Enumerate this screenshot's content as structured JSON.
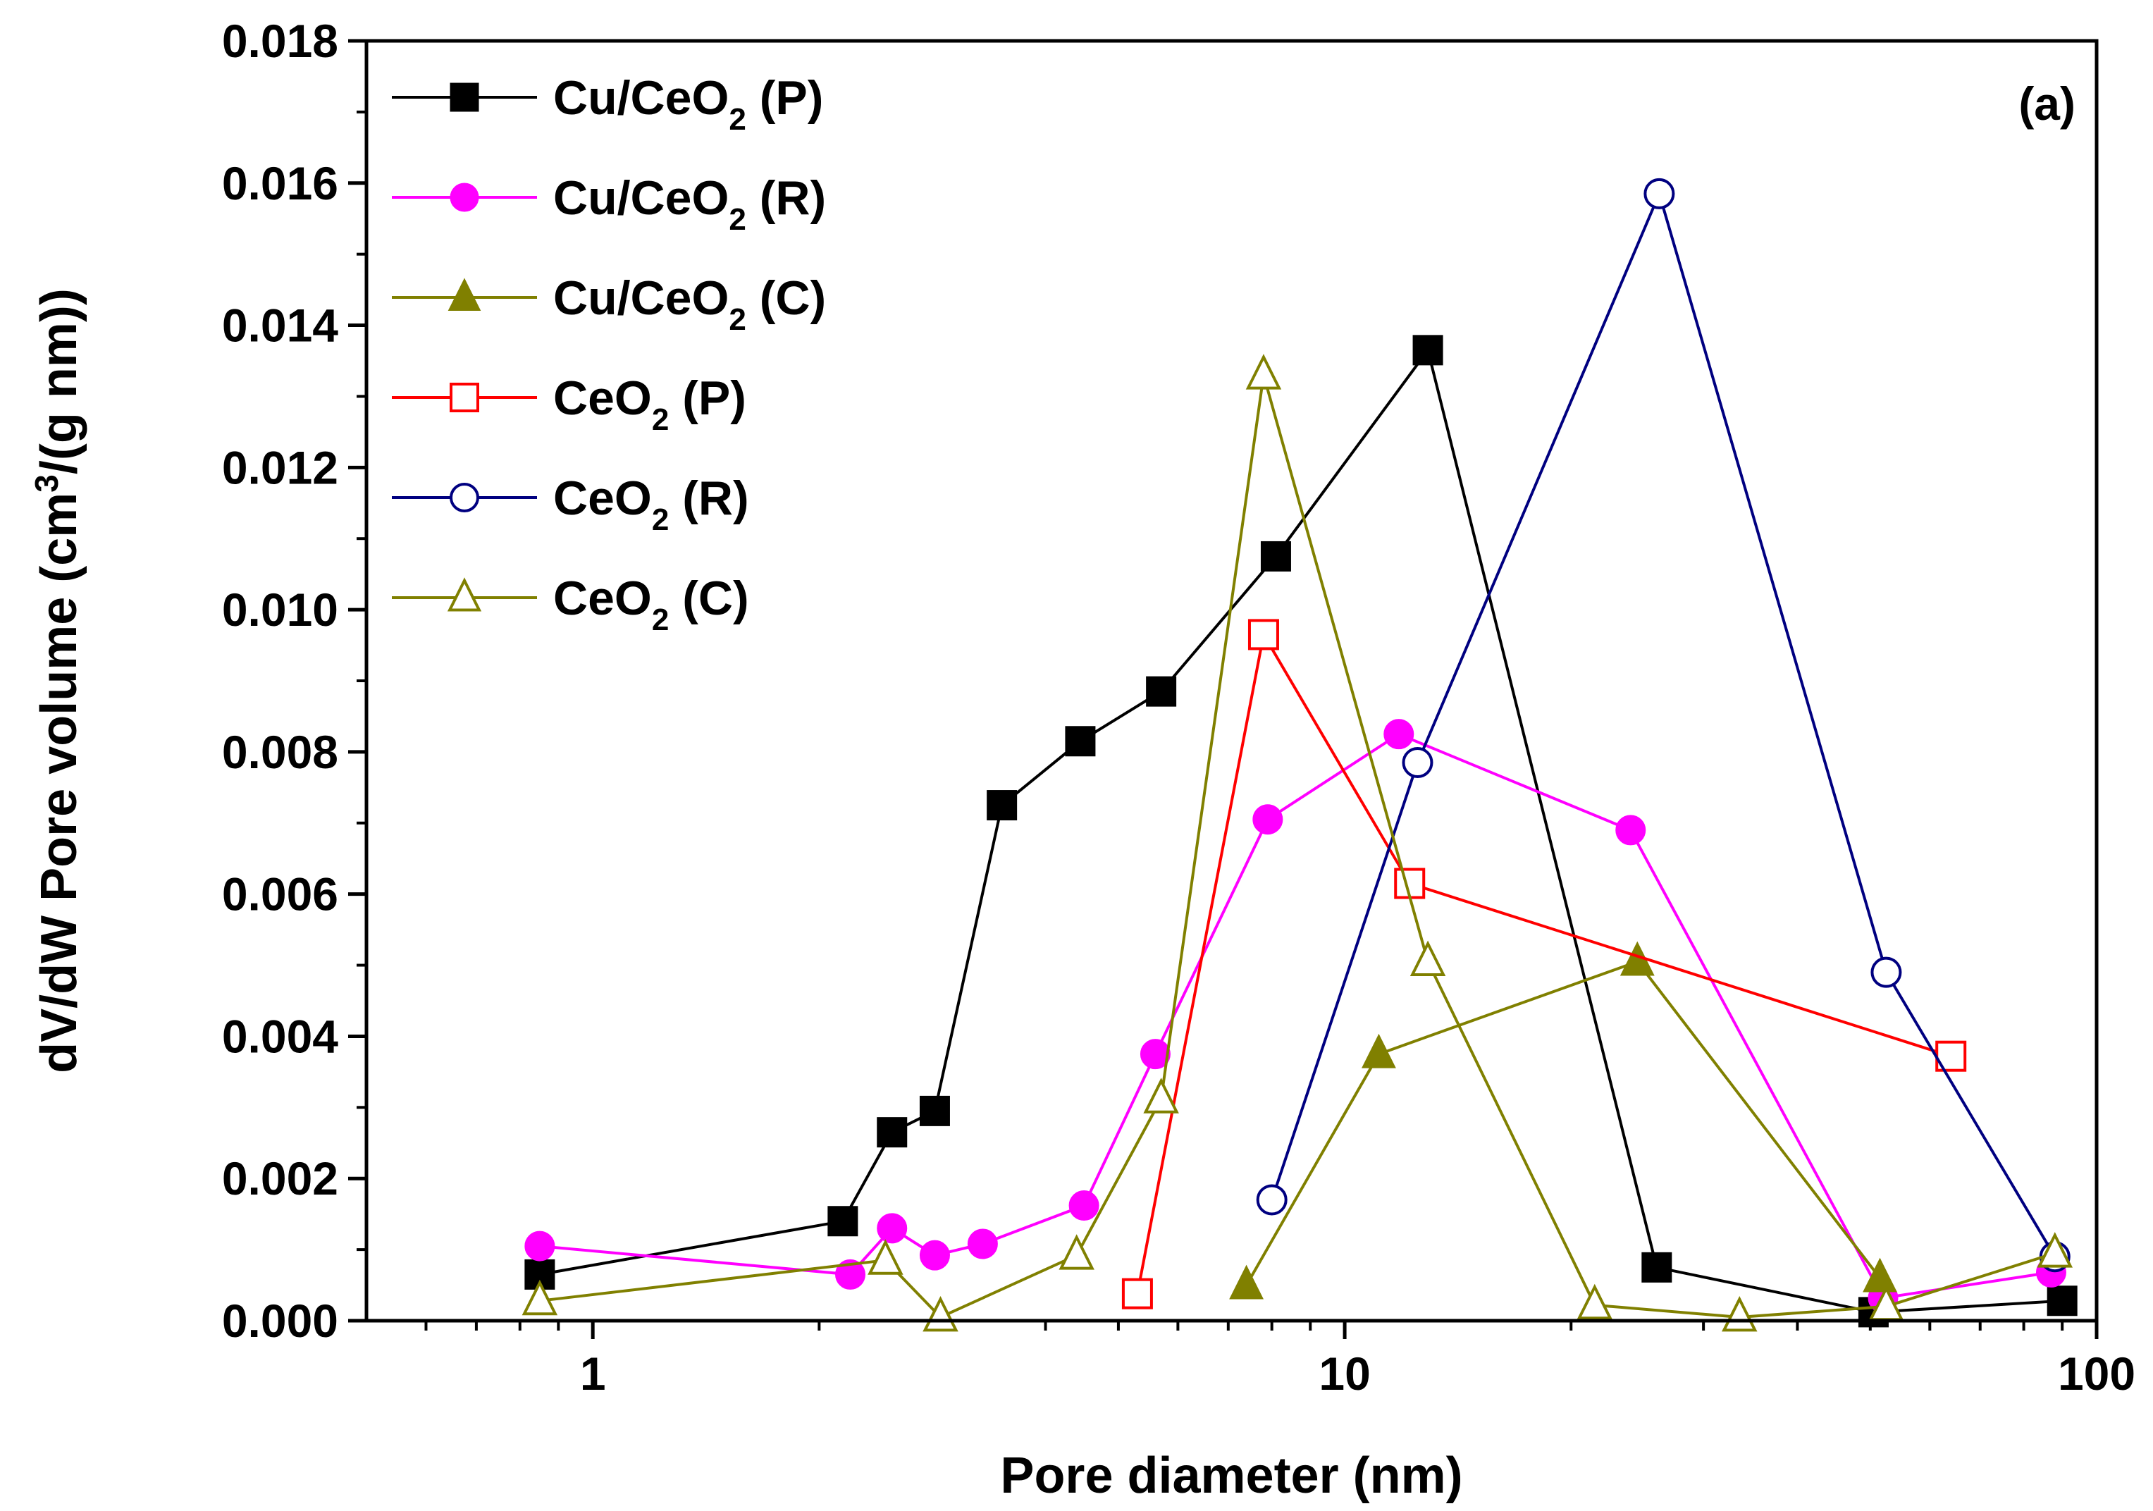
{
  "chart_data": {
    "type": "line",
    "title": "",
    "panel_label": "(a)",
    "xlabel": "Pore diameter (nm)",
    "ylabel": {
      "prefix": "dV/dW Pore volume (cm",
      "sup": "3",
      "suffix": "/(g nm))"
    },
    "xscale": "log",
    "xlim": [
      0.5,
      100
    ],
    "ylim": [
      0,
      0.018
    ],
    "x_ticks": [
      1,
      10,
      100
    ],
    "x_tick_labels": [
      "1",
      "10",
      "100"
    ],
    "y_ticks": [
      0,
      0.002,
      0.004,
      0.006,
      0.008,
      0.01,
      0.012,
      0.014,
      0.016,
      0.018
    ],
    "y_tick_labels": [
      "0.000",
      "0.002",
      "0.004",
      "0.006",
      "0.008",
      "0.010",
      "0.012",
      "0.014",
      "0.016",
      "0.018"
    ],
    "legend_position": "top-left",
    "series": [
      {
        "name": "Cu/CeO2 (P)",
        "label_main": "Cu/CeO",
        "label_sub": "2",
        "label_tail": " (P)",
        "color": "#000000",
        "marker": "square",
        "filled": true,
        "x": [
          0.85,
          2.15,
          2.5,
          2.85,
          3.5,
          4.45,
          5.7,
          8.1,
          12.9,
          26,
          50.5,
          90
        ],
        "y": [
          0.00065,
          0.0014,
          0.00265,
          0.00295,
          0.00725,
          0.00815,
          0.00885,
          0.01075,
          0.01365,
          0.00075,
          0.00012,
          0.00028
        ]
      },
      {
        "name": "Cu/CeO2 (R)",
        "label_main": "Cu/CeO",
        "label_sub": "2",
        "label_tail": " (R)",
        "color": "#ff00ff",
        "marker": "circle",
        "filled": true,
        "x": [
          0.85,
          2.2,
          2.5,
          2.85,
          3.3,
          4.5,
          5.6,
          7.9,
          11.8,
          24,
          52,
          87
        ],
        "y": [
          0.00105,
          0.00065,
          0.0013,
          0.00092,
          0.00108,
          0.00162,
          0.00375,
          0.00705,
          0.00825,
          0.0069,
          0.00032,
          0.00068
        ]
      },
      {
        "name": "Cu/CeO2 (C)",
        "label_main": "Cu/CeO",
        "label_sub": "2",
        "label_tail": " (C)",
        "color": "#808000",
        "marker": "triangle",
        "filled": true,
        "x": [
          7.4,
          11.1,
          24.5,
          51.5
        ],
        "y": [
          0.0005,
          0.00375,
          0.00505,
          0.0006
        ]
      },
      {
        "name": "CeO2 (P)",
        "label_main": "CeO",
        "label_sub": "2",
        "label_tail": " (P)",
        "color": "#ff0000",
        "marker": "square",
        "filled": false,
        "x": [
          5.3,
          7.8,
          12.2,
          64
        ],
        "y": [
          0.00038,
          0.00965,
          0.00615,
          0.00372
        ]
      },
      {
        "name": "CeO2 (R)",
        "label_main": "CeO",
        "label_sub": "2",
        "label_tail": " (R)",
        "color": "#000080",
        "marker": "circle",
        "filled": false,
        "x": [
          8.0,
          12.5,
          26.2,
          52.5,
          88
        ],
        "y": [
          0.0017,
          0.00785,
          0.01585,
          0.0049,
          0.0009
        ]
      },
      {
        "name": "CeO2 (C)",
        "label_main": "CeO",
        "label_sub": "2",
        "label_tail": " (C)",
        "color": "#808000",
        "marker": "triangle",
        "filled": false,
        "x": [
          0.85,
          2.45,
          2.9,
          4.4,
          5.7,
          7.8,
          12.9,
          21.5,
          33.5,
          52.5,
          88
        ],
        "y": [
          0.00028,
          0.00085,
          5e-05,
          0.00092,
          0.00312,
          0.0133,
          0.00505,
          0.00022,
          5e-05,
          0.0002,
          0.00095
        ]
      }
    ]
  }
}
